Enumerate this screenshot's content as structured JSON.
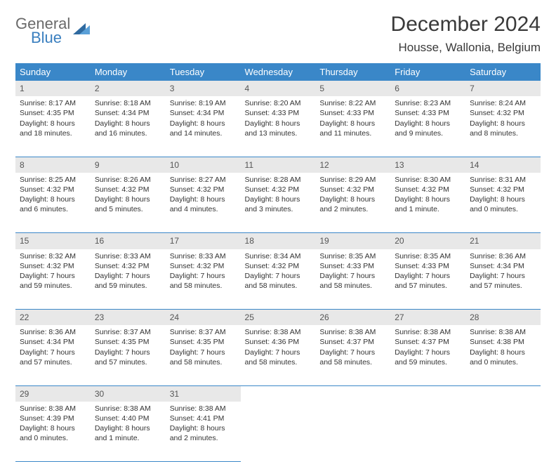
{
  "logo": {
    "word1": "General",
    "word2": "Blue"
  },
  "title": "December 2024",
  "location": "Housse, Wallonia, Belgium",
  "columns": [
    "Sunday",
    "Monday",
    "Tuesday",
    "Wednesday",
    "Thursday",
    "Friday",
    "Saturday"
  ],
  "colors": {
    "header_bg": "#3a87c8",
    "header_text": "#ffffff",
    "daynum_bg": "#e8e8e8",
    "row_divider": "#3a87c8",
    "logo_gray": "#6a6a6a",
    "logo_blue": "#3a7fbf"
  },
  "weeks": [
    [
      {
        "n": "1",
        "sunrise": "8:17 AM",
        "sunset": "4:35 PM",
        "daylight": "8 hours and 18 minutes."
      },
      {
        "n": "2",
        "sunrise": "8:18 AM",
        "sunset": "4:34 PM",
        "daylight": "8 hours and 16 minutes."
      },
      {
        "n": "3",
        "sunrise": "8:19 AM",
        "sunset": "4:34 PM",
        "daylight": "8 hours and 14 minutes."
      },
      {
        "n": "4",
        "sunrise": "8:20 AM",
        "sunset": "4:33 PM",
        "daylight": "8 hours and 13 minutes."
      },
      {
        "n": "5",
        "sunrise": "8:22 AM",
        "sunset": "4:33 PM",
        "daylight": "8 hours and 11 minutes."
      },
      {
        "n": "6",
        "sunrise": "8:23 AM",
        "sunset": "4:33 PM",
        "daylight": "8 hours and 9 minutes."
      },
      {
        "n": "7",
        "sunrise": "8:24 AM",
        "sunset": "4:32 PM",
        "daylight": "8 hours and 8 minutes."
      }
    ],
    [
      {
        "n": "8",
        "sunrise": "8:25 AM",
        "sunset": "4:32 PM",
        "daylight": "8 hours and 6 minutes."
      },
      {
        "n": "9",
        "sunrise": "8:26 AM",
        "sunset": "4:32 PM",
        "daylight": "8 hours and 5 minutes."
      },
      {
        "n": "10",
        "sunrise": "8:27 AM",
        "sunset": "4:32 PM",
        "daylight": "8 hours and 4 minutes."
      },
      {
        "n": "11",
        "sunrise": "8:28 AM",
        "sunset": "4:32 PM",
        "daylight": "8 hours and 3 minutes."
      },
      {
        "n": "12",
        "sunrise": "8:29 AM",
        "sunset": "4:32 PM",
        "daylight": "8 hours and 2 minutes."
      },
      {
        "n": "13",
        "sunrise": "8:30 AM",
        "sunset": "4:32 PM",
        "daylight": "8 hours and 1 minute."
      },
      {
        "n": "14",
        "sunrise": "8:31 AM",
        "sunset": "4:32 PM",
        "daylight": "8 hours and 0 minutes."
      }
    ],
    [
      {
        "n": "15",
        "sunrise": "8:32 AM",
        "sunset": "4:32 PM",
        "daylight": "7 hours and 59 minutes."
      },
      {
        "n": "16",
        "sunrise": "8:33 AM",
        "sunset": "4:32 PM",
        "daylight": "7 hours and 59 minutes."
      },
      {
        "n": "17",
        "sunrise": "8:33 AM",
        "sunset": "4:32 PM",
        "daylight": "7 hours and 58 minutes."
      },
      {
        "n": "18",
        "sunrise": "8:34 AM",
        "sunset": "4:32 PM",
        "daylight": "7 hours and 58 minutes."
      },
      {
        "n": "19",
        "sunrise": "8:35 AM",
        "sunset": "4:33 PM",
        "daylight": "7 hours and 58 minutes."
      },
      {
        "n": "20",
        "sunrise": "8:35 AM",
        "sunset": "4:33 PM",
        "daylight": "7 hours and 57 minutes."
      },
      {
        "n": "21",
        "sunrise": "8:36 AM",
        "sunset": "4:34 PM",
        "daylight": "7 hours and 57 minutes."
      }
    ],
    [
      {
        "n": "22",
        "sunrise": "8:36 AM",
        "sunset": "4:34 PM",
        "daylight": "7 hours and 57 minutes."
      },
      {
        "n": "23",
        "sunrise": "8:37 AM",
        "sunset": "4:35 PM",
        "daylight": "7 hours and 57 minutes."
      },
      {
        "n": "24",
        "sunrise": "8:37 AM",
        "sunset": "4:35 PM",
        "daylight": "7 hours and 58 minutes."
      },
      {
        "n": "25",
        "sunrise": "8:38 AM",
        "sunset": "4:36 PM",
        "daylight": "7 hours and 58 minutes."
      },
      {
        "n": "26",
        "sunrise": "8:38 AM",
        "sunset": "4:37 PM",
        "daylight": "7 hours and 58 minutes."
      },
      {
        "n": "27",
        "sunrise": "8:38 AM",
        "sunset": "4:37 PM",
        "daylight": "7 hours and 59 minutes."
      },
      {
        "n": "28",
        "sunrise": "8:38 AM",
        "sunset": "4:38 PM",
        "daylight": "8 hours and 0 minutes."
      }
    ],
    [
      {
        "n": "29",
        "sunrise": "8:38 AM",
        "sunset": "4:39 PM",
        "daylight": "8 hours and 0 minutes."
      },
      {
        "n": "30",
        "sunrise": "8:38 AM",
        "sunset": "4:40 PM",
        "daylight": "8 hours and 1 minute."
      },
      {
        "n": "31",
        "sunrise": "8:38 AM",
        "sunset": "4:41 PM",
        "daylight": "8 hours and 2 minutes."
      },
      null,
      null,
      null,
      null
    ]
  ],
  "labels": {
    "sunrise": "Sunrise:",
    "sunset": "Sunset:",
    "daylight": "Daylight:"
  }
}
